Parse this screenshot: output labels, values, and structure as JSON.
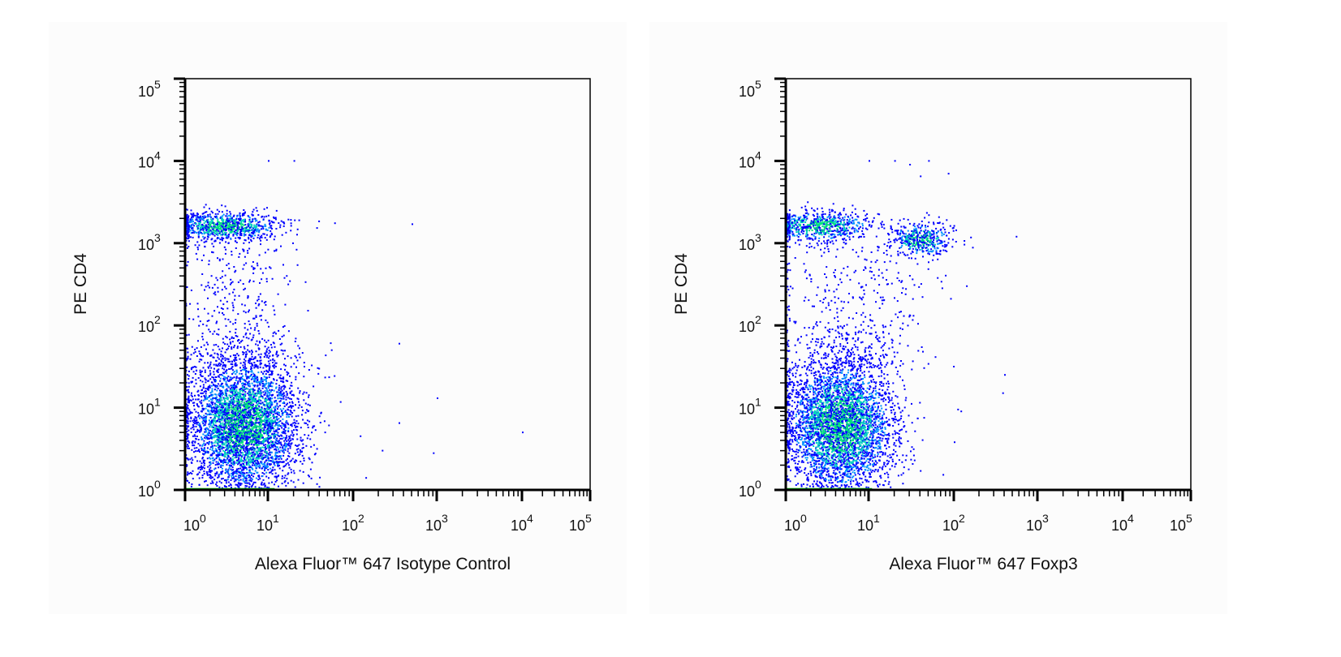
{
  "chart_data": [
    {
      "type": "scatter",
      "plot_style": "flow cytometry pseudocolor dot plot",
      "xlabel": "Alexa Fluor™ 647 Isotype Control",
      "ylabel": "PE CD4",
      "x_scale": "log",
      "y_scale": "log",
      "xlim": [
        1,
        100000
      ],
      "ylim": [
        1,
        100000
      ],
      "grid": false,
      "x_ticks": [
        {
          "base": "10",
          "exp": "0",
          "value": 1
        },
        {
          "base": "10",
          "exp": "1",
          "value": 10
        },
        {
          "base": "10",
          "exp": "2",
          "value": 100
        },
        {
          "base": "10",
          "exp": "3",
          "value": 1000
        },
        {
          "base": "10",
          "exp": "4",
          "value": 10000
        },
        {
          "base": "10",
          "exp": "5",
          "value": 100000
        }
      ],
      "y_ticks": [
        {
          "base": "10",
          "exp": "0",
          "value": 1
        },
        {
          "base": "10",
          "exp": "1",
          "value": 10
        },
        {
          "base": "10",
          "exp": "2",
          "value": 100
        },
        {
          "base": "10",
          "exp": "3",
          "value": 1000
        },
        {
          "base": "10",
          "exp": "4",
          "value": 10000
        },
        {
          "base": "10",
          "exp": "5",
          "value": 100000
        }
      ],
      "populations": [
        {
          "name": "CD4- cluster",
          "x_center": 5,
          "y_center": 6,
          "x_spread_decades": 0.33,
          "y_spread_decades": 0.42,
          "approx_events": 4500
        },
        {
          "name": "CD4+ cluster",
          "x_center": 3,
          "y_center": 1600,
          "x_spread_decades": 0.33,
          "y_spread_decades": 0.09,
          "approx_events": 900
        },
        {
          "name": "intermediate",
          "x_center": 4,
          "y_range": [
            30,
            1000
          ],
          "x_spread_decades": 0.33,
          "approx_events": 350
        }
      ],
      "outliers": [
        [
          10,
          10000
        ],
        [
          20,
          10000
        ],
        [
          60,
          1750
        ],
        [
          500,
          1700
        ],
        [
          55,
          50
        ],
        [
          350,
          60
        ],
        [
          1000,
          13
        ],
        [
          10000,
          5
        ],
        [
          350,
          6.5
        ],
        [
          120,
          4.5
        ],
        [
          220,
          3
        ],
        [
          900,
          2.8
        ],
        [
          140,
          1.4
        ]
      ]
    },
    {
      "type": "scatter",
      "plot_style": "flow cytometry pseudocolor dot plot",
      "xlabel": "Alexa Fluor™ 647 Foxp3",
      "ylabel": "PE CD4",
      "x_scale": "log",
      "y_scale": "log",
      "xlim": [
        1,
        100000
      ],
      "ylim": [
        1,
        100000
      ],
      "grid": false,
      "x_ticks": [
        {
          "base": "10",
          "exp": "0",
          "value": 1
        },
        {
          "base": "10",
          "exp": "1",
          "value": 10
        },
        {
          "base": "10",
          "exp": "2",
          "value": 100
        },
        {
          "base": "10",
          "exp": "3",
          "value": 1000
        },
        {
          "base": "10",
          "exp": "4",
          "value": 10000
        },
        {
          "base": "10",
          "exp": "5",
          "value": 100000
        }
      ],
      "y_ticks": [
        {
          "base": "10",
          "exp": "0",
          "value": 1
        },
        {
          "base": "10",
          "exp": "1",
          "value": 10
        },
        {
          "base": "10",
          "exp": "2",
          "value": 100
        },
        {
          "base": "10",
          "exp": "3",
          "value": 1000
        },
        {
          "base": "10",
          "exp": "4",
          "value": 10000
        },
        {
          "base": "10",
          "exp": "5",
          "value": 100000
        }
      ],
      "populations": [
        {
          "name": "CD4- cluster",
          "x_center": 4.5,
          "y_center": 6,
          "x_spread_decades": 0.33,
          "y_spread_decades": 0.42,
          "approx_events": 4200
        },
        {
          "name": "CD4+ Foxp3- cluster",
          "x_center": 2.5,
          "y_center": 1600,
          "x_spread_decades": 0.33,
          "y_spread_decades": 0.09,
          "approx_events": 700
        },
        {
          "name": "CD4+ Foxp3+ cluster",
          "x_center": 40,
          "y_center": 1100,
          "x_spread_decades": 0.18,
          "y_spread_decades": 0.1,
          "approx_events": 450
        },
        {
          "name": "intermediate",
          "x_center": 6,
          "y_range": [
            30,
            1000
          ],
          "x_spread_decades": 0.45,
          "approx_events": 380
        }
      ],
      "outliers": [
        [
          10,
          10000
        ],
        [
          20,
          10000
        ],
        [
          50,
          10000
        ],
        [
          30,
          9000
        ],
        [
          85,
          7000
        ],
        [
          40,
          6500
        ],
        [
          550,
          1200
        ],
        [
          140,
          300
        ],
        [
          400,
          25
        ],
        [
          380,
          15
        ],
        [
          120,
          9
        ],
        [
          110,
          9.5
        ],
        [
          100,
          3.8
        ],
        [
          40,
          1.7
        ]
      ]
    }
  ],
  "colors": {
    "low_density": "#0000ff",
    "mid_density": "#0090ff",
    "high_density": "#00d0c0",
    "peak_density": "#00e080",
    "axis_pileup": "#00b000",
    "axes": "#000000"
  }
}
